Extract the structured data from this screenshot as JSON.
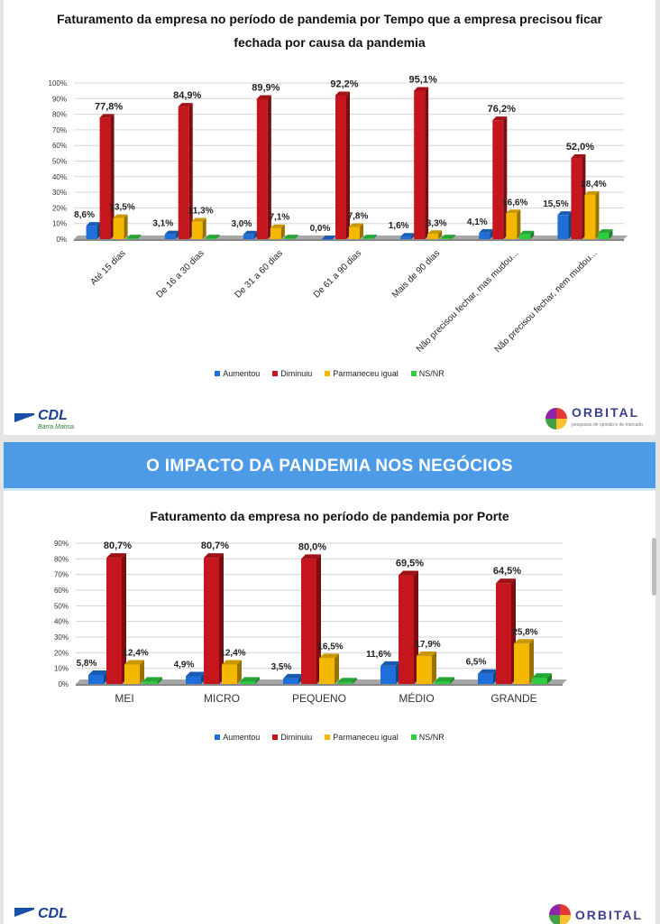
{
  "slide1": {
    "chart_data": {
      "type": "bar",
      "title": "Faturamento da empresa no período de pandemia por Tempo que a empresa precisou ficar fechada por causa da pandemia",
      "categories": [
        "Até 15 dias",
        "De 16 a 30 dias",
        "De 31 a 60 dias",
        "De 61 a 90 dias",
        "Mais de 90 dias",
        "Não precisou fechar, mas mudou...",
        "Não precisou fechar, nem mudou..."
      ],
      "ylim": [
        0,
        100
      ],
      "yticks": [
        "0%",
        "10%",
        "20%",
        "30%",
        "40%",
        "50%",
        "60%",
        "70%",
        "80%",
        "90%",
        "100%"
      ],
      "legend_position": "bottom",
      "series": [
        {
          "name": "Aumentou",
          "color": "#1e6fd9",
          "values": [
            8.6,
            3.1,
            3.0,
            0.0,
            1.6,
            4.1,
            15.5
          ],
          "labels": [
            "8,6%",
            "3,1%",
            "3,0%",
            "0,0%",
            "1,6%",
            "4,1%",
            "15,5%"
          ]
        },
        {
          "name": "Diminuiu",
          "color": "#c4161c",
          "values": [
            77.8,
            84.9,
            89.9,
            92.2,
            95.1,
            76.2,
            52.0
          ],
          "labels": [
            "77,8%",
            "84,9%",
            "89,9%",
            "92,2%",
            "95,1%",
            "76,2%",
            "52,0%"
          ]
        },
        {
          "name": "Parmaneceu igual",
          "color": "#f5b800",
          "values": [
            13.5,
            11.3,
            7.1,
            7.8,
            3.3,
            16.6,
            28.4
          ],
          "labels": [
            "13,5%",
            "11,3%",
            "7,1%",
            "7,8%",
            "3,3%",
            "16,6%",
            "28,4%"
          ]
        },
        {
          "name": "NS/NR",
          "color": "#2ecc40",
          "values": [
            0.5,
            0.5,
            0.5,
            0.5,
            0.5,
            3.0,
            4.0
          ],
          "labels": [
            "",
            "",
            "",
            "",
            "",
            "",
            ""
          ]
        }
      ]
    },
    "logos": {
      "left": "CDL",
      "left_sub": "Barra Mansa",
      "right": "ORBITAL",
      "right_sub": "pesquisas de opinião e de mercado"
    }
  },
  "slide2": {
    "banner": "O IMPACTO DA PANDEMIA NOS NEGÓCIOS",
    "chart_data": {
      "type": "bar",
      "title": "Faturamento da empresa no período de pandemia por Porte",
      "categories": [
        "MEI",
        "MICRO",
        "PEQUENO",
        "MÉDIO",
        "GRANDE"
      ],
      "ylim": [
        0,
        90
      ],
      "yticks": [
        "0%",
        "10%",
        "20%",
        "30%",
        "40%",
        "50%",
        "60%",
        "70%",
        "80%",
        "90%"
      ],
      "legend_position": "bottom",
      "series": [
        {
          "name": "Aumentou",
          "color": "#1e6fd9",
          "values": [
            5.8,
            4.9,
            3.5,
            11.6,
            6.5
          ],
          "labels": [
            "5,8%",
            "4,9%",
            "3,5%",
            "11,6%",
            "6,5%"
          ]
        },
        {
          "name": "Diminuiu",
          "color": "#c4161c",
          "values": [
            80.7,
            80.7,
            80.0,
            69.5,
            64.5
          ],
          "labels": [
            "80,7%",
            "80,7%",
            "80,0%",
            "69,5%",
            "64,5%"
          ]
        },
        {
          "name": "Parmaneceu igual",
          "color": "#f5b800",
          "values": [
            12.4,
            12.4,
            16.5,
            17.9,
            25.8
          ],
          "labels": [
            "12,4%",
            "12,4%",
            "16,5%",
            "17,9%",
            "25,8%"
          ]
        },
        {
          "name": "NS/NR",
          "color": "#2ecc40",
          "values": [
            1.5,
            1.5,
            1.0,
            1.5,
            4.0
          ],
          "labels": [
            "",
            "",
            "",
            "",
            ""
          ]
        }
      ]
    },
    "logos": {
      "left": "CDL",
      "right": "ORBITAL"
    }
  }
}
